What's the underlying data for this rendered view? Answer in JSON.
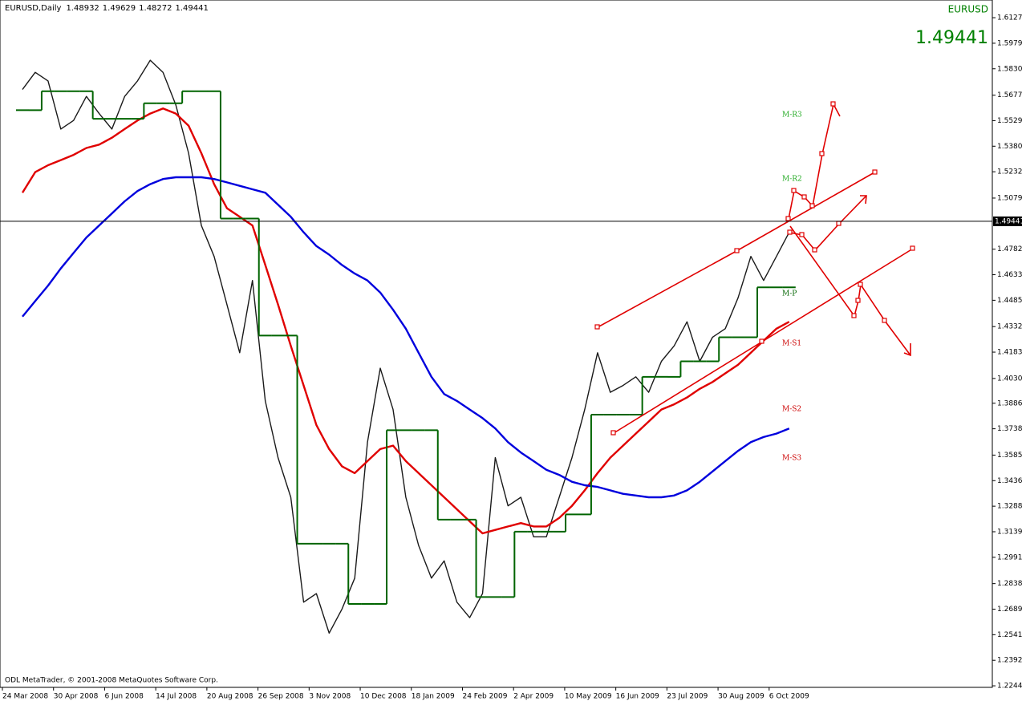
{
  "chart_data": {
    "type": "line",
    "title": "EURUSD,Daily",
    "ohlc": [
      1.48932,
      1.49629,
      1.48272,
      1.49441
    ],
    "symbol": "EURUSD",
    "bid": 1.49441,
    "copyright": "ODL MetaTrader, © 2001-2008 MetaQuotes Software Corp.",
    "annotations": [
      "M-R3",
      "M-R2",
      "M-P",
      "M-S1",
      "M-S2",
      "M-S3"
    ],
    "categories": [
      "24 Mar 2008",
      null,
      null,
      null,
      "30 Apr 2008",
      null,
      null,
      null,
      "6 Jun 2008",
      null,
      null,
      null,
      "14 Jul 2008",
      null,
      null,
      null,
      "20 Aug 2008",
      null,
      null,
      null,
      "26 Sep 2008",
      null,
      null,
      null,
      "3 Nov 2008",
      null,
      null,
      null,
      "10 Dec 2008",
      null,
      null,
      null,
      "18 Jan 2009",
      null,
      null,
      null,
      "24 Feb 2009",
      null,
      null,
      null,
      "2 Apr 2009",
      null,
      null,
      null,
      "10 May 2009",
      null,
      null,
      null,
      "16 Jun 2009",
      null,
      null,
      null,
      "23 Jul 2009",
      null,
      null,
      null,
      "30 Aug 2009",
      null,
      null,
      null,
      "6 Oct 2009",
      null,
      null,
      null,
      null,
      null,
      null,
      null,
      null,
      null,
      null,
      null,
      null,
      null,
      null,
      null
    ],
    "series": [
      {
        "color": "#1a1a1a",
        "values": [
          1.571,
          1.581,
          1.576,
          1.548,
          1.553,
          1.567,
          1.557,
          1.548,
          1.567,
          1.576,
          1.588,
          1.581,
          1.562,
          1.534,
          1.492,
          1.474,
          1.446,
          1.418,
          1.46,
          1.39,
          1.357,
          1.334,
          1.273,
          1.278,
          1.255,
          1.269,
          1.287,
          1.366,
          1.409,
          1.385,
          1.334,
          1.306,
          1.287,
          1.297,
          1.273,
          1.264,
          1.278,
          1.357,
          1.329,
          1.334,
          1.311,
          1.311,
          1.334,
          1.357,
          1.385,
          1.418,
          1.395,
          1.399,
          1.404,
          1.395,
          1.413,
          1.422,
          1.436,
          1.413,
          1.427,
          1.432,
          1.45,
          1.474,
          1.46,
          1.474,
          1.488,
          null,
          null,
          null,
          null,
          null,
          null,
          null,
          null,
          null,
          null,
          null,
          null,
          null,
          null,
          null
        ]
      },
      {
        "color": "#e00000",
        "values": [
          1.511,
          1.523,
          1.527,
          1.53,
          1.533,
          1.537,
          1.539,
          1.543,
          1.548,
          1.553,
          1.557,
          1.56,
          1.557,
          1.55,
          1.534,
          1.516,
          1.502,
          1.497,
          1.492,
          1.469,
          1.446,
          1.422,
          1.399,
          1.376,
          1.362,
          1.352,
          1.348,
          1.355,
          1.362,
          1.364,
          1.355,
          1.348,
          1.341,
          1.334,
          1.327,
          1.32,
          1.313,
          1.315,
          1.317,
          1.319,
          1.317,
          1.317,
          1.322,
          1.329,
          1.338,
          1.348,
          1.357,
          1.364,
          1.371,
          1.378,
          1.385,
          1.388,
          1.392,
          1.397,
          1.401,
          1.406,
          1.411,
          1.418,
          1.425,
          1.432,
          1.436,
          null,
          null,
          null,
          null,
          null,
          null,
          null,
          null,
          null,
          null,
          null,
          null,
          null,
          null,
          null
        ]
      },
      {
        "color": "#0000dd",
        "values": [
          1.439,
          1.448,
          1.457,
          1.467,
          1.476,
          1.485,
          1.492,
          1.499,
          1.506,
          1.512,
          1.516,
          1.519,
          1.52,
          1.52,
          1.52,
          1.519,
          1.517,
          1.515,
          1.513,
          1.511,
          1.504,
          1.497,
          1.488,
          1.48,
          1.475,
          1.469,
          1.464,
          1.46,
          1.453,
          1.443,
          1.432,
          1.418,
          1.404,
          1.394,
          1.39,
          1.385,
          1.38,
          1.374,
          1.366,
          1.36,
          1.355,
          1.35,
          1.347,
          1.343,
          1.341,
          1.34,
          1.338,
          1.336,
          1.335,
          1.334,
          1.334,
          1.335,
          1.338,
          1.343,
          1.349,
          1.355,
          1.361,
          1.366,
          1.369,
          1.371,
          1.374,
          null,
          null,
          null,
          null,
          null,
          null,
          null,
          null,
          null,
          null,
          null,
          null,
          null,
          null,
          null
        ]
      },
      {
        "color": "#006400",
        "step": true,
        "values": [
          1.559,
          1.559,
          1.57,
          1.57,
          1.57,
          1.57,
          1.554,
          1.554,
          1.554,
          1.554,
          1.563,
          1.563,
          1.563,
          1.57,
          1.57,
          1.57,
          1.496,
          1.496,
          1.496,
          1.428,
          1.428,
          1.428,
          1.307,
          1.307,
          1.307,
          1.307,
          1.272,
          1.272,
          1.272,
          1.373,
          1.373,
          1.373,
          1.373,
          1.321,
          1.321,
          1.321,
          1.276,
          1.276,
          1.276,
          1.314,
          1.314,
          1.314,
          1.314,
          1.324,
          1.324,
          1.382,
          1.382,
          1.382,
          1.382,
          1.404,
          1.404,
          1.404,
          1.413,
          1.413,
          1.413,
          1.427,
          1.427,
          1.427,
          1.456,
          1.456,
          1.456,
          null,
          null,
          null,
          null,
          null,
          null,
          null,
          null,
          null,
          null,
          null,
          null,
          null,
          null,
          null
        ]
      }
    ],
    "ylim": [
      1.2235,
      1.6221
    ],
    "yticks": [
      1.61275,
      {
        "value": 1.5979,
        "label": "1.59790"
      },
      1.58305,
      {
        "value": 1.5677,
        "label": "1.56770"
      },
      {
        "value": 1.5529,
        "label": "1.55290"
      },
      1.53805,
      {
        "value": 1.5232,
        "label": "1.52320"
      },
      {
        "value": 1.5079,
        "label": "1.50790"
      },
      {
        "value": 1.4782,
        "label": "1.47820"
      },
      1.46335,
      {
        "value": 1.4485,
        "label": "1.44850"
      },
      {
        "value": 1.4332,
        "label": "1.43320"
      },
      1.41835,
      1.40305,
      1.38865,
      {
        "value": 1.3738,
        "label": "1.37380"
      },
      {
        "value": 1.3585,
        "label": "1.35850"
      },
      1.34365,
      {
        "value": 1.3288,
        "label": "1.32880"
      },
      1.31395,
      {
        "value": 1.2991,
        "label": "1.29910"
      },
      {
        "value": 1.2838,
        "label": "1.28380"
      },
      1.26895,
      {
        "value": 1.2541,
        "label": "1.25410"
      },
      1.23925,
      {
        "value": 1.2244,
        "label": "1.22440"
      }
    ],
    "grid": false
  }
}
